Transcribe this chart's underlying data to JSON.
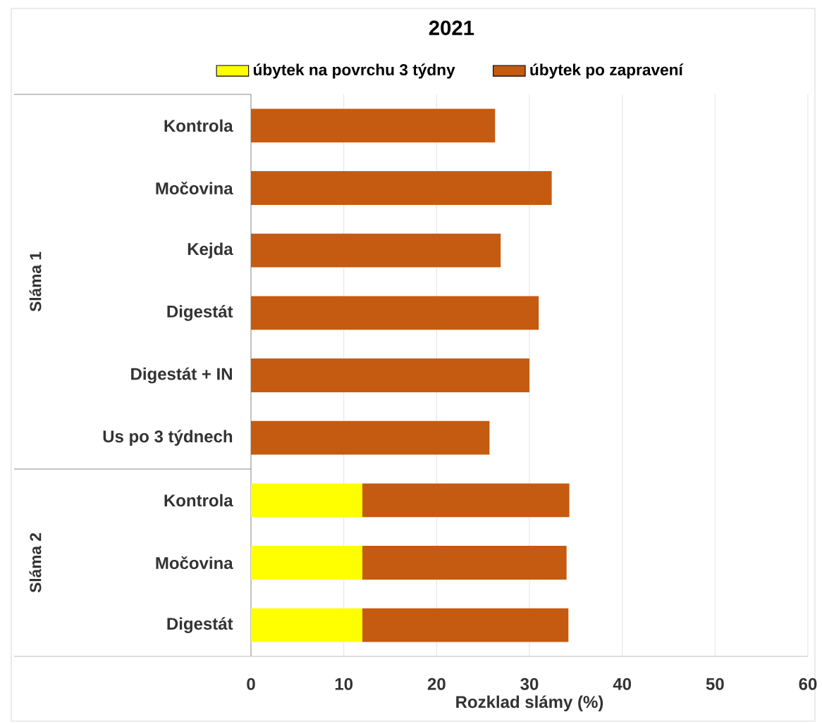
{
  "chart_data": {
    "type": "bar",
    "orientation": "horizontal",
    "stacked": true,
    "title": "2021",
    "xlabel": "Rozklad slámy (%)",
    "categories": [
      "Kontrola",
      "Močovina",
      "Kejda",
      "Digestát",
      "Digestát + IN",
      "Us po 3 týdnech",
      "Kontrola",
      "Močovina",
      "Digestát"
    ],
    "series": [
      {
        "name": "úbytek na povrchu 3 týdny",
        "color": "#ffff00",
        "values": [
          null,
          null,
          null,
          null,
          null,
          null,
          12,
          12,
          12
        ]
      },
      {
        "name": "úbytek po zapravení",
        "color": "#c55a11",
        "values": [
          26.3,
          32.4,
          26.9,
          31.0,
          30.0,
          25.7,
          22.3,
          22.0,
          22.2
        ]
      }
    ],
    "xlim": [
      0,
      60
    ],
    "xticks": [
      0,
      10,
      20,
      30,
      40,
      50,
      60
    ],
    "grid": "x",
    "legend": "top",
    "annotations": [
      "Sláma 1",
      "Sláma 2"
    ]
  }
}
